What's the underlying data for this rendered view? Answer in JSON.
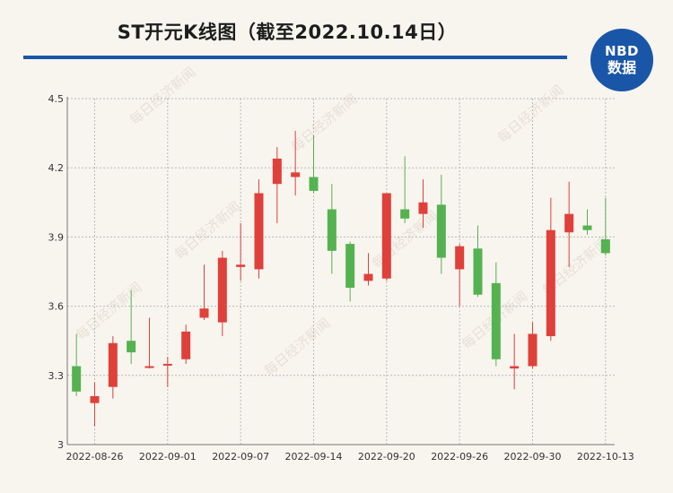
{
  "header": {
    "title": "ST开元K线图（截至2022.10.14日）",
    "badge_top": "NBD",
    "badge_bottom": "数据"
  },
  "watermark": "每日经济新闻",
  "colors": {
    "up": "#e0403a",
    "down": "#55b250",
    "accent": "#1a56a8"
  },
  "chart_data": {
    "type": "candlestick",
    "title": "ST开元K线图（截至2022.10.14日）",
    "ylim": [
      3.0,
      4.5
    ],
    "yticks": [
      "3",
      "3.3",
      "3.6",
      "3.9",
      "4.2",
      "4.5"
    ],
    "grid": true,
    "xticks": [
      "2022-08-26",
      "2022-09-01",
      "2022-09-07",
      "2022-09-14",
      "2022-09-20",
      "2022-09-26",
      "2022-09-30",
      "2022-10-13"
    ],
    "xtick_index": [
      1,
      5,
      9,
      13,
      17,
      21,
      25,
      29
    ],
    "candles": [
      {
        "open": 3.34,
        "close": 3.23,
        "high": 3.48,
        "low": 3.21
      },
      {
        "open": 3.18,
        "close": 3.21,
        "high": 3.27,
        "low": 3.08
      },
      {
        "open": 3.25,
        "close": 3.44,
        "high": 3.47,
        "low": 3.2
      },
      {
        "open": 3.45,
        "close": 3.4,
        "high": 3.67,
        "low": 3.35
      },
      {
        "open": 3.34,
        "close": 3.34,
        "high": 3.55,
        "low": 3.33
      },
      {
        "open": 3.35,
        "close": 3.35,
        "high": 3.38,
        "low": 3.25
      },
      {
        "open": 3.37,
        "close": 3.49,
        "high": 3.52,
        "low": 3.35
      },
      {
        "open": 3.55,
        "close": 3.59,
        "high": 3.78,
        "low": 3.54
      },
      {
        "open": 3.53,
        "close": 3.81,
        "high": 3.84,
        "low": 3.47
      },
      {
        "open": 3.77,
        "close": 3.78,
        "high": 3.96,
        "low": 3.71
      },
      {
        "open": 3.76,
        "close": 4.09,
        "high": 4.15,
        "low": 3.72
      },
      {
        "open": 4.13,
        "close": 4.24,
        "high": 4.29,
        "low": 3.96
      },
      {
        "open": 4.16,
        "close": 4.18,
        "high": 4.36,
        "low": 4.08
      },
      {
        "open": 4.16,
        "close": 4.1,
        "high": 4.34,
        "low": 4.09
      },
      {
        "open": 4.02,
        "close": 3.84,
        "high": 4.13,
        "low": 3.74
      },
      {
        "open": 3.87,
        "close": 3.68,
        "high": 3.88,
        "low": 3.62
      },
      {
        "open": 3.71,
        "close": 3.74,
        "high": 3.83,
        "low": 3.69
      },
      {
        "open": 3.72,
        "close": 4.09,
        "high": 4.09,
        "low": 3.71
      },
      {
        "open": 4.02,
        "close": 3.98,
        "high": 4.25,
        "low": 3.96
      },
      {
        "open": 4.0,
        "close": 4.05,
        "high": 4.15,
        "low": 3.94
      },
      {
        "open": 4.04,
        "close": 3.81,
        "high": 4.17,
        "low": 3.74
      },
      {
        "open": 3.76,
        "close": 3.86,
        "high": 3.87,
        "low": 3.6
      },
      {
        "open": 3.85,
        "close": 3.65,
        "high": 3.95,
        "low": 3.64
      },
      {
        "open": 3.7,
        "close": 3.37,
        "high": 3.79,
        "low": 3.34
      },
      {
        "open": 3.33,
        "close": 3.34,
        "high": 3.48,
        "low": 3.24
      },
      {
        "open": 3.34,
        "close": 3.48,
        "high": 3.53,
        "low": 3.33
      },
      {
        "open": 3.47,
        "close": 3.93,
        "high": 4.07,
        "low": 3.45
      },
      {
        "open": 3.92,
        "close": 4.0,
        "high": 4.14,
        "low": 3.77
      },
      {
        "open": 3.95,
        "close": 3.93,
        "high": 4.02,
        "low": 3.91
      },
      {
        "open": 3.89,
        "close": 3.83,
        "high": 4.07,
        "low": 3.82
      }
    ]
  }
}
